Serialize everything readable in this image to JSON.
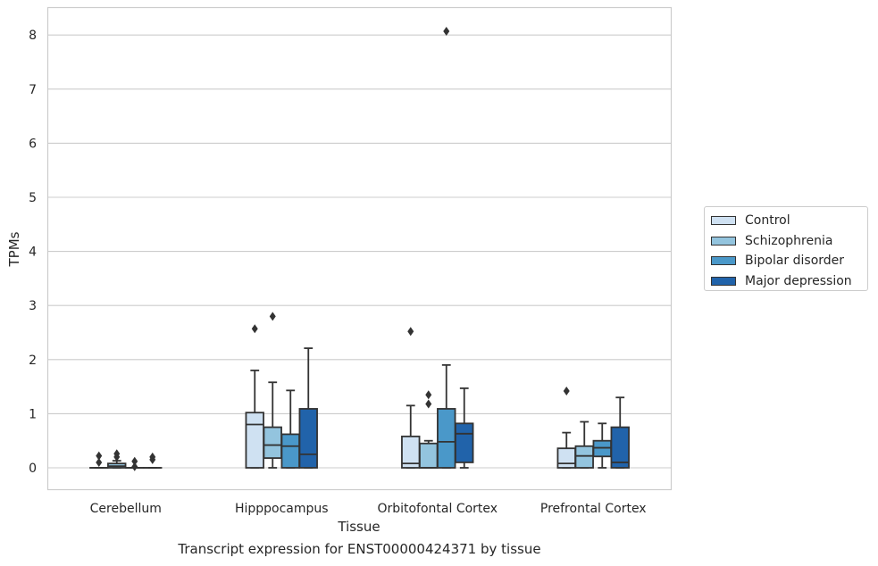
{
  "chart_data": {
    "type": "box",
    "title": "Transcript expression for ENST00000424371 by tissue",
    "xlabel": "Tissue",
    "ylabel": "TPMs",
    "ylim": [
      -0.4,
      8.5
    ],
    "yticks": [
      0,
      1,
      2,
      3,
      4,
      5,
      6,
      7,
      8
    ],
    "grid": "horizontal",
    "legend_position": "right",
    "categories": [
      "Cerebellum",
      "Hipppocampus",
      "Orbitofontal Cortex",
      "Prefrontal Cortex"
    ],
    "series": [
      {
        "name": "Control",
        "color": "#cfe1f2",
        "boxes": [
          {
            "min": 0,
            "q1": 0,
            "median": 0,
            "q3": 0,
            "max": 0,
            "outliers": [
              0.1,
              0.22
            ]
          },
          {
            "min": 0,
            "q1": 0,
            "median": 0.8,
            "q3": 1.02,
            "max": 1.8,
            "outliers": [
              2.57
            ]
          },
          {
            "min": 0,
            "q1": 0,
            "median": 0.08,
            "q3": 0.58,
            "max": 1.15,
            "outliers": [
              2.52
            ]
          },
          {
            "min": 0,
            "q1": 0,
            "median": 0.08,
            "q3": 0.36,
            "max": 0.65,
            "outliers": [
              1.42
            ]
          }
        ]
      },
      {
        "name": "Schizophrenia",
        "color": "#93c4de",
        "boxes": [
          {
            "min": 0,
            "q1": 0,
            "median": 0.03,
            "q3": 0.08,
            "max": 0.13,
            "outliers": [
              0.2,
              0.26
            ]
          },
          {
            "min": 0,
            "q1": 0.18,
            "median": 0.42,
            "q3": 0.75,
            "max": 1.58,
            "outliers": [
              2.8
            ]
          },
          {
            "min": 0,
            "q1": 0,
            "median": 0,
            "q3": 0.45,
            "max": 0.5,
            "outliers": [
              1.18,
              1.35
            ]
          },
          {
            "min": 0,
            "q1": 0,
            "median": 0.22,
            "q3": 0.4,
            "max": 0.85,
            "outliers": []
          }
        ]
      },
      {
        "name": "Bipolar disorder",
        "color": "#4a98c9",
        "boxes": [
          {
            "min": 0,
            "q1": 0,
            "median": 0,
            "q3": 0,
            "max": 0,
            "outliers": [
              0.02,
              0.12
            ]
          },
          {
            "min": 0,
            "q1": 0,
            "median": 0.4,
            "q3": 0.62,
            "max": 1.43,
            "outliers": []
          },
          {
            "min": 0,
            "q1": 0,
            "median": 0.48,
            "q3": 1.09,
            "max": 1.9,
            "outliers": [
              8.07
            ]
          },
          {
            "min": 0,
            "q1": 0.21,
            "median": 0.37,
            "q3": 0.5,
            "max": 0.82,
            "outliers": []
          }
        ]
      },
      {
        "name": "Major depression",
        "color": "#2163aa",
        "boxes": [
          {
            "min": 0,
            "q1": 0,
            "median": 0,
            "q3": 0,
            "max": 0,
            "outliers": [
              0.15,
              0.2
            ]
          },
          {
            "min": 0,
            "q1": 0,
            "median": 0.25,
            "q3": 1.09,
            "max": 2.21,
            "outliers": []
          },
          {
            "min": 0,
            "q1": 0.1,
            "median": 0.63,
            "q3": 0.82,
            "max": 1.47,
            "outliers": []
          },
          {
            "min": 0,
            "q1": 0,
            "median": 0.1,
            "q3": 0.75,
            "max": 1.3,
            "outliers": []
          }
        ]
      }
    ]
  }
}
